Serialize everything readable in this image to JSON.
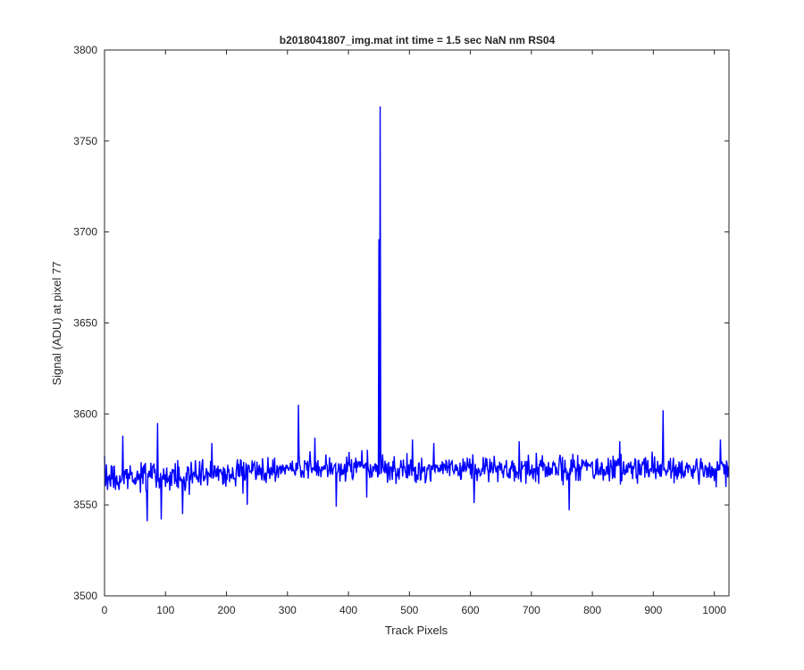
{
  "chart_data": {
    "type": "line",
    "title": "b2018041807_img.mat int time = 1.5 sec  NaN nm RS04",
    "xlabel": "Track Pixels",
    "ylabel": "Signal (ADU) at pixel 77",
    "xlim": [
      0,
      1024
    ],
    "ylim": [
      3500,
      3800
    ],
    "xticks": [
      0,
      100,
      200,
      300,
      400,
      500,
      600,
      700,
      800,
      900,
      1000
    ],
    "yticks": [
      3500,
      3550,
      3600,
      3650,
      3700,
      3750,
      3800
    ],
    "grid": false,
    "legend": "none",
    "series_color": "#0000ff",
    "series": [
      {
        "baseline_mean": 3568,
        "noise_range": [
          3541,
          3605
        ],
        "n_points": 1024,
        "spikes": [
          {
            "x": 0,
            "y": 3577
          },
          {
            "x": 30,
            "y": 3588
          },
          {
            "x": 70,
            "y": 3541
          },
          {
            "x": 87,
            "y": 3595
          },
          {
            "x": 93,
            "y": 3542
          },
          {
            "x": 128,
            "y": 3545
          },
          {
            "x": 176,
            "y": 3584
          },
          {
            "x": 234,
            "y": 3550
          },
          {
            "x": 318,
            "y": 3605
          },
          {
            "x": 345,
            "y": 3587
          },
          {
            "x": 380,
            "y": 3549
          },
          {
            "x": 430,
            "y": 3554
          },
          {
            "x": 450,
            "y": 3696
          },
          {
            "x": 452,
            "y": 3769
          },
          {
            "x": 505,
            "y": 3586
          },
          {
            "x": 540,
            "y": 3584
          },
          {
            "x": 606,
            "y": 3551
          },
          {
            "x": 680,
            "y": 3585
          },
          {
            "x": 762,
            "y": 3547
          },
          {
            "x": 845,
            "y": 3585
          },
          {
            "x": 916,
            "y": 3602
          },
          {
            "x": 1010,
            "y": 3586
          }
        ]
      }
    ]
  }
}
